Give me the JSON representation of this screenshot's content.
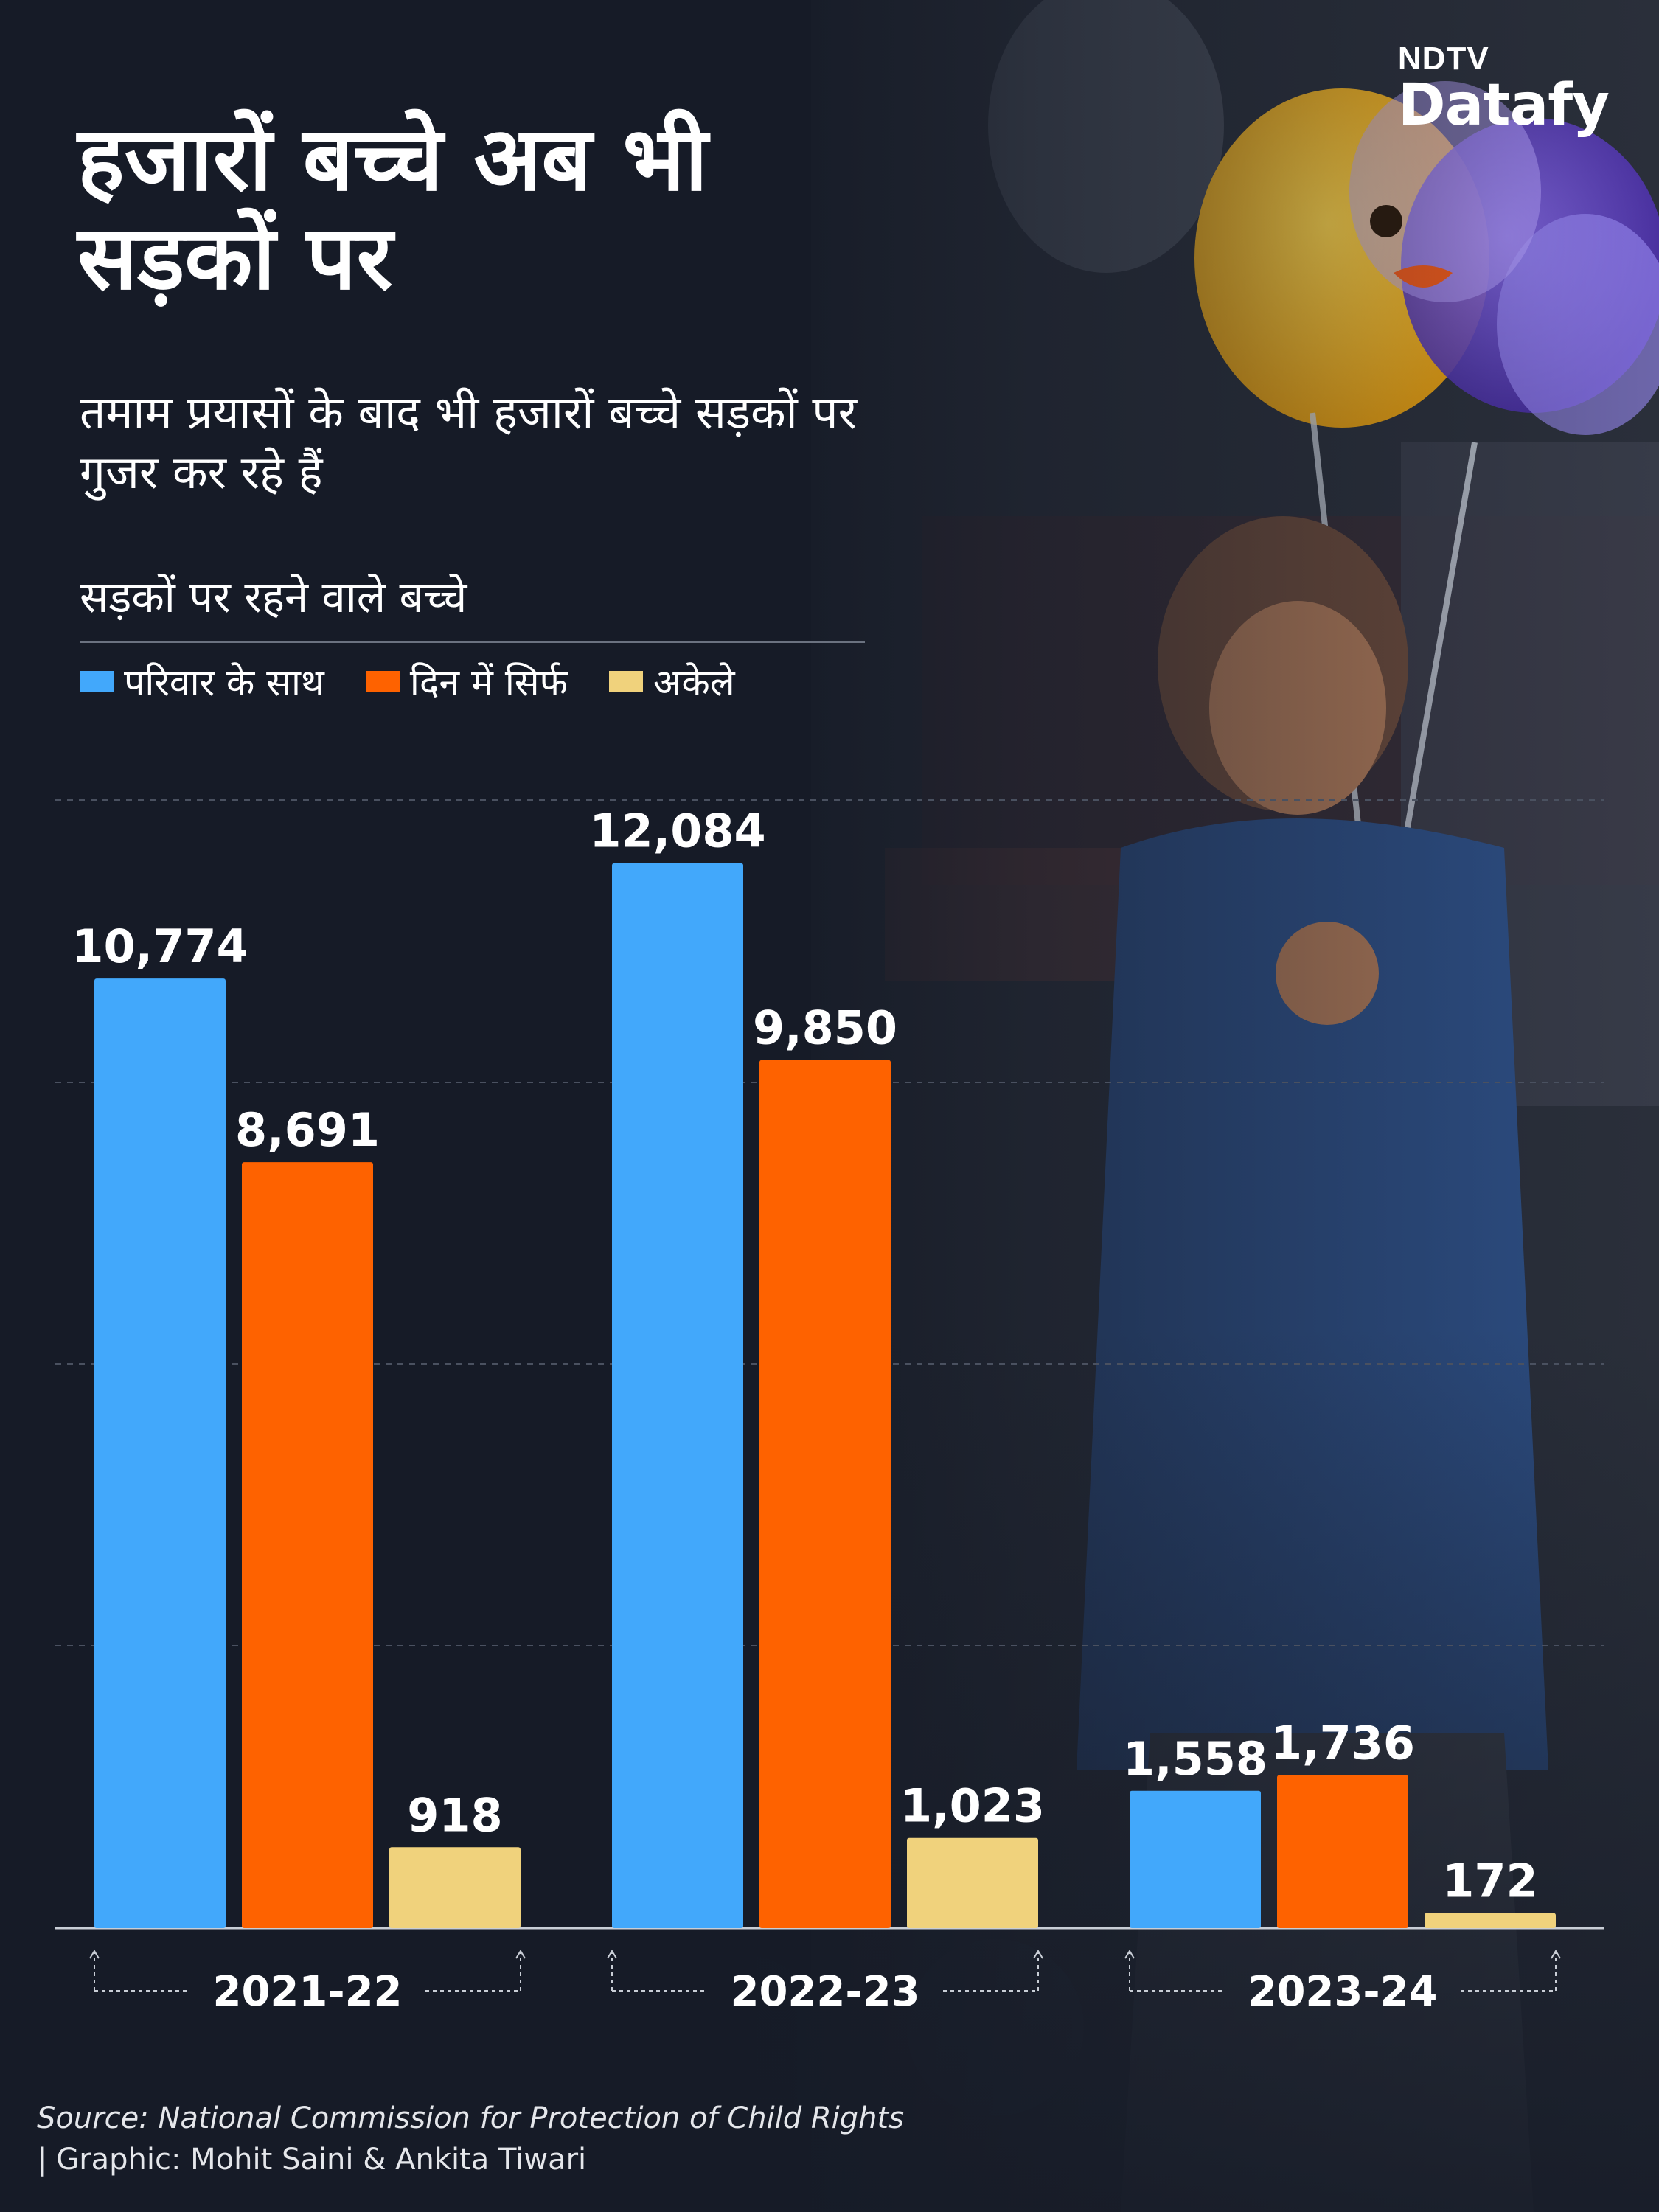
{
  "brand": {
    "line1": "NDTV",
    "line2": "Datafy"
  },
  "title": "हजारों बच्चे अब भी सड़कों पर",
  "subtitle": "तमाम प्रयासों के बाद भी हजारों बच्चे सड़कों पर गुजर कर रहे हैं",
  "chart_label": "सड़कों पर रहने वाले बच्चे",
  "colors": {
    "background": "#161b27",
    "blue": "#42a8fb",
    "orange": "#fe6200",
    "yellow": "#f0d27c"
  },
  "chart_data": {
    "type": "bar",
    "title": "सड़कों पर रहने वाले बच्चे",
    "categories": [
      "2021-22",
      "2022-23",
      "2023-24"
    ],
    "series": [
      {
        "name": "परिवार के साथ",
        "color": "#42a8fb",
        "values": [
          10774,
          12084,
          1558
        ],
        "labels": [
          "10,774",
          "12,084",
          "1,558"
        ]
      },
      {
        "name": "दिन में सिर्फ",
        "color": "#fe6200",
        "values": [
          8691,
          9850,
          1736
        ],
        "labels": [
          "8,691",
          "9,850",
          "1,736"
        ]
      },
      {
        "name": "अकेले",
        "color": "#f0d27c",
        "values": [
          918,
          1023,
          172
        ],
        "labels": [
          "918",
          "1,023",
          "172"
        ]
      }
    ],
    "ylim": [
      0,
      12800
    ],
    "grid": true,
    "legend": "top-left"
  },
  "source": {
    "line1": "Source: National Commission for Protection of Child Rights",
    "line2": "| Graphic: Mohit Saini & Ankita Tiwari"
  }
}
